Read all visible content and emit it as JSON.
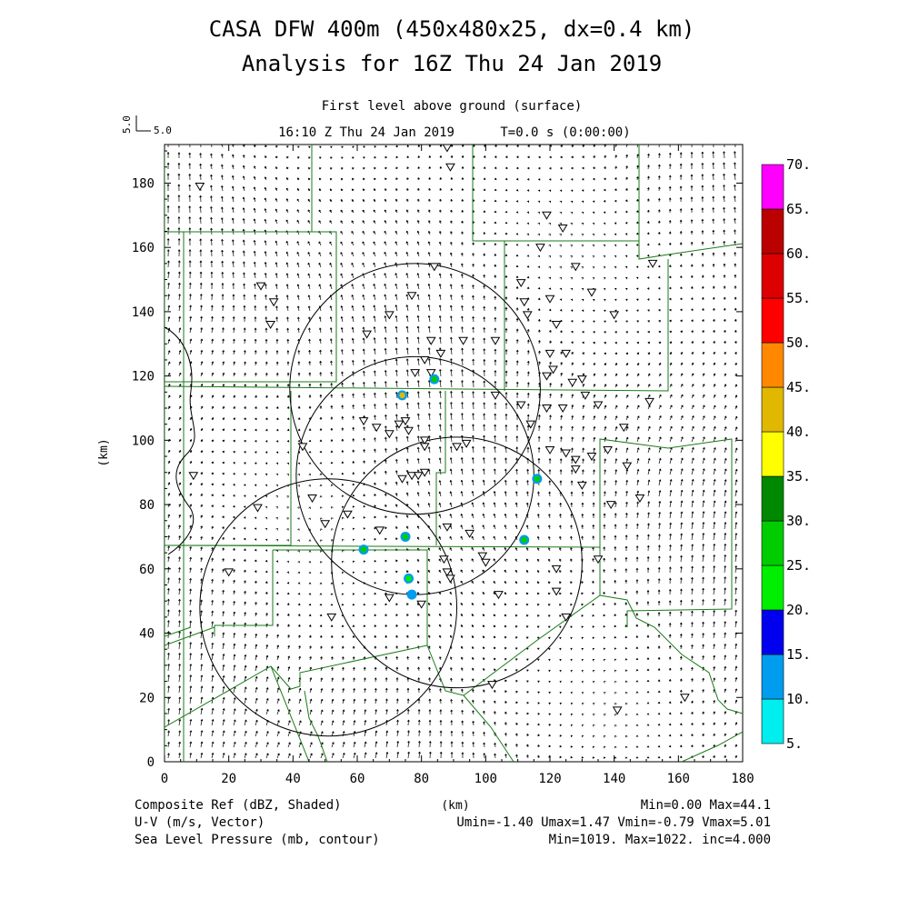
{
  "header": {
    "title_line1": "CASA DFW 400m (450x480x25, dx=0.4 km)",
    "title_line2": "Analysis for 16Z Thu 24 Jan 2019",
    "subtitle": "First level above ground (surface)",
    "time_label": "16:10 Z Thu 24 Jan 2019",
    "t_label": "T=0.0 s (0:00:00)",
    "vector_ref_vertical": "5.0",
    "vector_ref_horizontal": "5.0"
  },
  "axes": {
    "xlabel": "(km)",
    "ylabel": "(km)",
    "x_ticks": [
      "0",
      "20",
      "40",
      "60",
      "80",
      "100",
      "120",
      "140",
      "160",
      "180"
    ],
    "y_ticks": [
      "0",
      "20",
      "40",
      "60",
      "80",
      "100",
      "120",
      "140",
      "160",
      "180"
    ],
    "xlim": [
      0,
      180
    ],
    "ylim": [
      0,
      192
    ]
  },
  "colorbar": {
    "labels": [
      "5.",
      "10.",
      "15.",
      "20.",
      "25.",
      "30.",
      "35.",
      "40.",
      "45.",
      "50.",
      "55.",
      "60.",
      "65.",
      "70."
    ],
    "colors": [
      "#00eeee",
      "#009cee",
      "#0000ee",
      "#00ee00",
      "#00cc00",
      "#008800",
      "#ffff00",
      "#e0b800",
      "#ff8800",
      "#ff0000",
      "#dd0000",
      "#bb0000",
      "#ff00ff"
    ]
  },
  "footer": {
    "left": [
      "Composite Ref (dBZ, Shaded)",
      "U-V (m/s, Vector)",
      "Sea Level Pressure (mb, contour)"
    ],
    "center": "(km)",
    "right": [
      "Min=0.00 Max=44.1",
      "Umin=-1.40 Umax=1.47 Vmin=-0.79 Vmax=5.01",
      "Min=1019. Max=1022. inc=4.000"
    ]
  },
  "style": {
    "county_color": "#1a7a1a",
    "range_ring_color": "#000000"
  },
  "chart_data": {
    "type": "heatmap",
    "field": "Composite Ref (dBZ)",
    "echoes_km": [
      {
        "x": 74,
        "y": 114,
        "dbz": 40
      },
      {
        "x": 84,
        "y": 119,
        "dbz": 25
      },
      {
        "x": 116,
        "y": 88,
        "dbz": 25
      },
      {
        "x": 112,
        "y": 69,
        "dbz": 25
      },
      {
        "x": 62,
        "y": 66,
        "dbz": 25
      },
      {
        "x": 75,
        "y": 70,
        "dbz": 25
      },
      {
        "x": 76,
        "y": 57,
        "dbz": 20
      },
      {
        "x": 77,
        "y": 52,
        "dbz": 10
      }
    ],
    "range_rings_km": [
      {
        "cx": 78,
        "cy": 116,
        "r": 39
      },
      {
        "cx": 78,
        "cy": 89,
        "r": 37
      },
      {
        "cx": 91,
        "cy": 62,
        "r": 39
      },
      {
        "cx": 51,
        "cy": 48,
        "r": 40
      }
    ],
    "stations_km": [
      [
        11,
        179
      ],
      [
        88,
        191
      ],
      [
        89,
        185
      ],
      [
        119,
        170
      ],
      [
        124,
        166
      ],
      [
        128,
        154
      ],
      [
        117,
        160
      ],
      [
        133,
        146
      ],
      [
        140,
        139
      ],
      [
        152,
        155
      ],
      [
        30,
        148
      ],
      [
        34,
        143
      ],
      [
        33,
        136
      ],
      [
        63,
        133
      ],
      [
        70,
        139
      ],
      [
        77,
        145
      ],
      [
        84,
        154
      ],
      [
        83,
        131
      ],
      [
        86,
        127
      ],
      [
        81,
        125
      ],
      [
        78,
        121
      ],
      [
        83,
        121
      ],
      [
        93,
        131
      ],
      [
        103,
        131
      ],
      [
        111,
        149
      ],
      [
        112,
        143
      ],
      [
        113,
        139
      ],
      [
        120,
        144
      ],
      [
        122,
        136
      ],
      [
        120,
        127
      ],
      [
        121,
        122
      ],
      [
        119,
        120
      ],
      [
        125,
        127
      ],
      [
        119,
        110
      ],
      [
        124,
        110
      ],
      [
        130,
        119
      ],
      [
        131,
        114
      ],
      [
        127,
        118
      ],
      [
        135,
        111
      ],
      [
        143,
        104
      ],
      [
        151,
        112
      ],
      [
        103,
        114
      ],
      [
        111,
        111
      ],
      [
        114,
        105
      ],
      [
        62,
        106
      ],
      [
        66,
        104
      ],
      [
        70,
        102
      ],
      [
        73,
        105
      ],
      [
        75,
        106
      ],
      [
        76,
        103
      ],
      [
        81,
        100
      ],
      [
        81,
        98
      ],
      [
        91,
        98
      ],
      [
        94,
        99
      ],
      [
        120,
        97
      ],
      [
        125,
        96
      ],
      [
        128,
        94
      ],
      [
        128,
        91
      ],
      [
        133,
        95
      ],
      [
        138,
        97
      ],
      [
        144,
        92
      ],
      [
        148,
        82
      ],
      [
        130,
        86
      ],
      [
        139,
        80
      ],
      [
        122,
        60
      ],
      [
        122,
        53
      ],
      [
        135,
        63
      ],
      [
        125,
        45
      ],
      [
        74,
        88
      ],
      [
        77,
        89
      ],
      [
        79,
        89
      ],
      [
        81,
        90
      ],
      [
        43,
        98
      ],
      [
        9,
        89
      ],
      [
        29,
        79
      ],
      [
        46,
        82
      ],
      [
        50,
        74
      ],
      [
        57,
        77
      ],
      [
        67,
        72
      ],
      [
        88,
        73
      ],
      [
        95,
        71
      ],
      [
        99,
        64
      ],
      [
        100,
        62
      ],
      [
        88,
        59
      ],
      [
        89,
        57
      ],
      [
        87,
        63
      ],
      [
        70,
        51
      ],
      [
        80,
        49
      ],
      [
        52,
        45
      ],
      [
        20,
        59
      ],
      [
        104,
        52
      ],
      [
        102,
        24
      ],
      [
        141,
        16
      ],
      [
        162,
        20
      ]
    ],
    "wind_vector_ref": {
      "u": 5.0,
      "v": 5.0
    },
    "u_range": [
      -1.4,
      1.47
    ],
    "v_range": [
      -0.79,
      5.01
    ],
    "slp_range": [
      1019,
      1022
    ],
    "slp_inc": 4.0
  }
}
